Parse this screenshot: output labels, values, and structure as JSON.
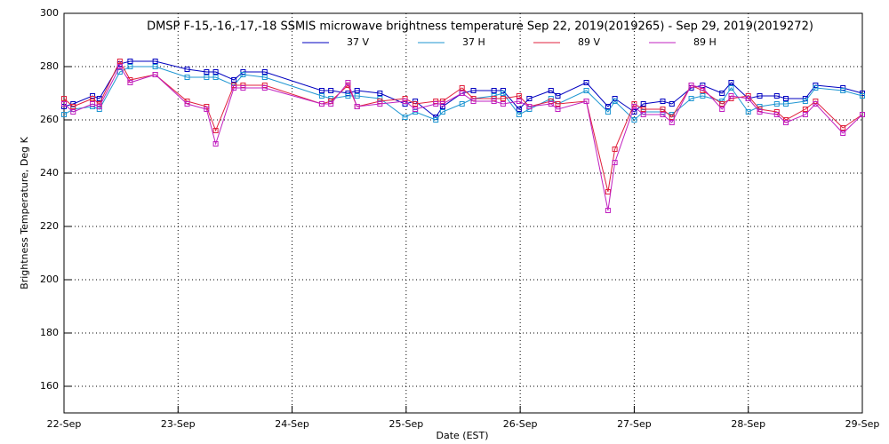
{
  "chart_data": {
    "type": "line",
    "title": "DMSP F-15,-16,-17,-18 SSMIS microwave brightness temperature Sep 22, 2019(2019265) - Sep 29, 2019(2019272)",
    "xlabel": "Date (EST)",
    "ylabel": "Brightness Temperature, Deg K",
    "x": [
      0,
      0.08,
      0.25,
      0.31,
      0.49,
      0.58,
      0.8,
      1.08,
      1.25,
      1.33,
      1.49,
      1.57,
      1.76,
      2.26,
      2.34,
      2.49,
      2.57,
      2.77,
      2.99,
      3.08,
      3.26,
      3.32,
      3.49,
      3.59,
      3.77,
      3.85,
      3.99,
      4.08,
      4.27,
      4.33,
      4.58,
      4.77,
      4.83,
      5.0,
      5.08,
      5.25,
      5.33,
      5.5,
      5.6,
      5.77,
      5.85,
      6.0,
      6.1,
      6.25,
      6.33,
      6.5,
      6.59,
      6.83,
      7.0
    ],
    "series": [
      {
        "name": "37 V",
        "color": "#0000c0",
        "values": [
          265,
          266,
          269,
          268,
          281,
          282,
          282,
          279,
          278,
          278,
          275,
          278,
          278,
          271,
          271,
          270,
          271,
          270,
          266,
          267,
          261,
          265,
          270,
          271,
          271,
          271,
          264,
          268,
          271,
          269,
          274,
          265,
          268,
          263,
          266,
          267,
          266,
          272,
          273,
          270,
          274,
          268,
          269,
          269,
          268,
          268,
          273,
          272,
          270
        ]
      },
      {
        "name": "37 H",
        "color": "#1e96d2",
        "values": [
          262,
          264,
          265,
          264,
          278,
          280,
          280,
          276,
          276,
          276,
          273,
          277,
          276,
          269,
          268,
          269,
          269,
          268,
          261,
          263,
          260,
          263,
          266,
          268,
          269,
          270,
          262,
          264,
          268,
          266,
          271,
          263,
          267,
          260,
          263,
          263,
          262,
          268,
          269,
          267,
          272,
          263,
          265,
          266,
          266,
          267,
          272,
          271,
          269
        ]
      },
      {
        "name": "89 V",
        "color": "#e0203c",
        "values": [
          268,
          265,
          268,
          266,
          282,
          275,
          277,
          267,
          265,
          256,
          273,
          273,
          273,
          266,
          267,
          273,
          265,
          267,
          268,
          266,
          267,
          267,
          272,
          268,
          268,
          268,
          269,
          265,
          267,
          266,
          267,
          233,
          249,
          266,
          264,
          264,
          261,
          273,
          271,
          266,
          268,
          269,
          264,
          263,
          260,
          264,
          267,
          257,
          262
        ]
      },
      {
        "name": "89 H",
        "color": "#c020c0",
        "values": [
          266,
          263,
          266,
          265,
          280,
          274,
          277,
          266,
          264,
          251,
          272,
          272,
          272,
          266,
          266,
          274,
          265,
          266,
          267,
          264,
          266,
          266,
          270,
          267,
          267,
          266,
          267,
          265,
          266,
          264,
          267,
          226,
          244,
          265,
          262,
          262,
          259,
          273,
          272,
          264,
          269,
          268,
          263,
          262,
          259,
          262,
          266,
          255,
          262
        ]
      }
    ],
    "xlim": [
      0,
      7
    ],
    "xticks": [
      {
        "value": 0,
        "label": "22-Sep"
      },
      {
        "value": 1,
        "label": "23-Sep"
      },
      {
        "value": 2,
        "label": "24-Sep"
      },
      {
        "value": 3,
        "label": "25-Sep"
      },
      {
        "value": 4,
        "label": "26-Sep"
      },
      {
        "value": 5,
        "label": "27-Sep"
      },
      {
        "value": 6,
        "label": "28-Sep"
      },
      {
        "value": 7,
        "label": "29-Sep"
      }
    ],
    "ylim": [
      150,
      300
    ],
    "yticks": [
      160,
      180,
      200,
      220,
      240,
      260,
      280,
      300
    ],
    "grid": true
  }
}
